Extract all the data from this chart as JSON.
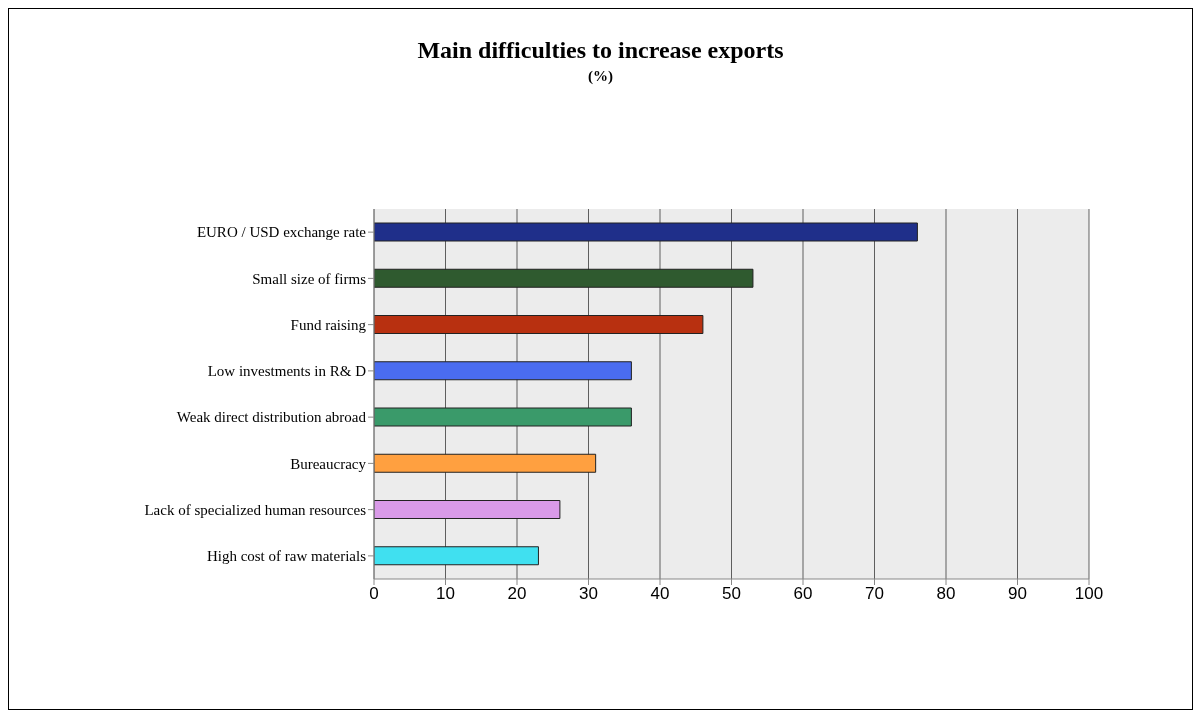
{
  "chart_data": {
    "type": "bar",
    "title": "Main difficulties to increase exports",
    "subtitle": "(%)",
    "orientation": "horizontal",
    "categories": [
      "EURO / USD exchange rate",
      "Small size of firms",
      "Fund raising",
      "Low investments in R& D",
      "Weak direct distribution abroad",
      "Bureaucracy",
      "Lack of specialized human resources",
      "High cost of raw materials"
    ],
    "values": [
      76,
      53,
      46,
      36,
      36,
      31,
      26,
      23
    ],
    "colors": [
      "#1f2f8a",
      "#2f5a2f",
      "#b83010",
      "#4a6cf0",
      "#3a9a6a",
      "#ffa040",
      "#d99ae8",
      "#40e0f0"
    ],
    "xlim": [
      0,
      100
    ],
    "xticks": [
      0,
      10,
      20,
      30,
      40,
      50,
      60,
      70,
      80,
      90,
      100
    ],
    "grid": "x"
  }
}
